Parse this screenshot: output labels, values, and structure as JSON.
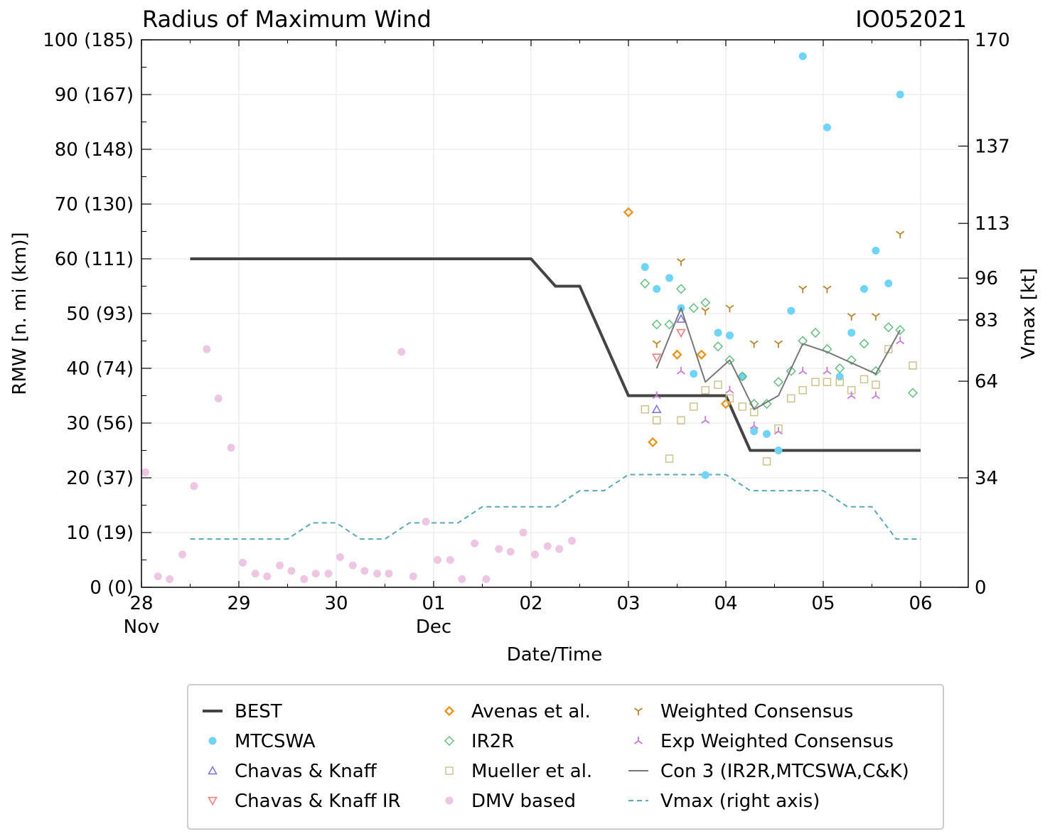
{
  "chart_data": {
    "type": "line+scatter",
    "title": "Radius of Maximum Wind",
    "storm_id": "IO052021",
    "xlabel": "Date/Time",
    "ylabel": "RMW [n. mi (km)]",
    "y2label": "Vmax [kt]",
    "x_domain_days": [
      0,
      8.5
    ],
    "ylim": [
      0,
      100
    ],
    "y2lim": [
      0,
      170
    ],
    "grid": true,
    "legend_position": "bottom",
    "x_ticks": [
      {
        "x": 0,
        "label": "28",
        "sub": "Nov"
      },
      {
        "x": 1,
        "label": "29",
        "sub": ""
      },
      {
        "x": 2,
        "label": "30",
        "sub": ""
      },
      {
        "x": 3,
        "label": "01",
        "sub": "Dec"
      },
      {
        "x": 4,
        "label": "02",
        "sub": ""
      },
      {
        "x": 5,
        "label": "03",
        "sub": ""
      },
      {
        "x": 6,
        "label": "04",
        "sub": ""
      },
      {
        "x": 7,
        "label": "05",
        "sub": ""
      },
      {
        "x": 8,
        "label": "06",
        "sub": ""
      }
    ],
    "y_ticks": [
      {
        "v": 0,
        "label": "0 (0)"
      },
      {
        "v": 10,
        "label": "10 (19)"
      },
      {
        "v": 20,
        "label": "20 (37)"
      },
      {
        "v": 30,
        "label": "30 (56)"
      },
      {
        "v": 40,
        "label": "40 (74)"
      },
      {
        "v": 50,
        "label": "50 (93)"
      },
      {
        "v": 60,
        "label": "60 (111)"
      },
      {
        "v": 70,
        "label": "70 (130)"
      },
      {
        "v": 80,
        "label": "80 (148)"
      },
      {
        "v": 90,
        "label": "90 (167)"
      },
      {
        "v": 100,
        "label": "100 (185)"
      }
    ],
    "y2_ticks": [
      {
        "v": 0,
        "label": "0"
      },
      {
        "v": 34,
        "label": "34"
      },
      {
        "v": 64,
        "label": "64"
      },
      {
        "v": 83,
        "label": "83"
      },
      {
        "v": 96,
        "label": "96"
      },
      {
        "v": 113,
        "label": "113"
      },
      {
        "v": 137,
        "label": "137"
      },
      {
        "v": 170,
        "label": "170"
      }
    ],
    "series": [
      {
        "name": "BEST",
        "kind": "line",
        "color": "#444444",
        "x": [
          0.5,
          4.0,
          4.25,
          4.5,
          5.0,
          6.0,
          6.25,
          8.0
        ],
        "y": [
          60,
          60,
          55,
          55,
          35,
          35,
          25,
          25
        ]
      },
      {
        "name": "MTCSWA",
        "kind": "scatter",
        "marker": "circle",
        "color": "#6fd4f8",
        "x": [
          5.17,
          5.29,
          5.42,
          5.54,
          5.67,
          5.79,
          5.92,
          6.04,
          6.17,
          6.29,
          6.42,
          6.54,
          6.67,
          6.79,
          7.04,
          7.17,
          7.29,
          7.42,
          7.54,
          7.67,
          7.79
        ],
        "y": [
          58.5,
          54.5,
          56.5,
          51,
          39,
          20.5,
          46.5,
          46,
          38.5,
          28.5,
          28,
          25,
          50.5,
          97,
          84,
          38.5,
          46.5,
          54.5,
          61.5,
          55.5,
          90
        ]
      },
      {
        "name": "Chavas & Knaff",
        "kind": "scatter",
        "marker": "triangle-up",
        "color": "#8474d8",
        "x": [
          5.29,
          5.54
        ],
        "y": [
          32.5,
          49
        ]
      },
      {
        "name": "Chavas & Knaff IR",
        "kind": "scatter",
        "marker": "triangle-down",
        "color": "#ec7f7f",
        "x": [
          5.29,
          5.54
        ],
        "y": [
          42,
          46.5
        ]
      },
      {
        "name": "Avenas et al.",
        "kind": "scatter",
        "marker": "diamond",
        "color": "#e79622",
        "x": [
          5.0,
          5.25,
          5.5,
          5.75,
          6.0
        ],
        "y": [
          68.5,
          26.5,
          42.5,
          42.5,
          33.5
        ]
      },
      {
        "name": "IR2R",
        "kind": "scatter",
        "marker": "diamond-open",
        "color": "#5cbc7a",
        "x": [
          5.17,
          5.29,
          5.42,
          5.54,
          5.67,
          5.79,
          5.92,
          6.04,
          6.17,
          6.29,
          6.42,
          6.54,
          6.67,
          6.79,
          6.92,
          7.04,
          7.17,
          7.29,
          7.42,
          7.54,
          7.67,
          7.79,
          7.92
        ],
        "y": [
          55.5,
          48,
          48,
          54.5,
          51,
          52,
          44,
          41.5,
          38.5,
          33.5,
          33.5,
          37.5,
          39.5,
          45,
          46.5,
          43.5,
          40,
          41.5,
          44.5,
          39.5,
          47.5,
          47,
          35.5
        ]
      },
      {
        "name": "Mueller et al.",
        "kind": "scatter",
        "marker": "square",
        "color": "#cabf85",
        "x": [
          5.17,
          5.29,
          5.42,
          5.54,
          5.67,
          5.79,
          5.92,
          6.04,
          6.17,
          6.29,
          6.42,
          6.54,
          6.67,
          6.79,
          6.92,
          7.04,
          7.17,
          7.29,
          7.42,
          7.54,
          7.67,
          7.92
        ],
        "y": [
          32.5,
          30.5,
          23.5,
          30.5,
          33,
          36,
          37,
          34.5,
          33,
          32,
          23,
          29,
          34.5,
          36,
          37.5,
          37.5,
          37.5,
          36,
          38,
          37,
          43.5,
          40.5
        ]
      },
      {
        "name": "DMV based",
        "kind": "scatter",
        "marker": "circle",
        "color": "#ecc6e2",
        "x": [
          0.04,
          0.17,
          0.29,
          0.42,
          0.54,
          0.67,
          0.79,
          0.92,
          1.04,
          1.17,
          1.29,
          1.42,
          1.54,
          1.67,
          1.79,
          1.92,
          2.04,
          2.17,
          2.29,
          2.42,
          2.54,
          2.67,
          2.79,
          2.92,
          3.04,
          3.17,
          3.29,
          3.42,
          3.54,
          3.67,
          3.79,
          3.92,
          4.04,
          4.17,
          4.29,
          4.42
        ],
        "y": [
          21,
          2,
          1.5,
          6,
          18.5,
          43.5,
          34.5,
          25.5,
          4.5,
          2.5,
          2,
          4,
          3,
          1.5,
          2.5,
          2.5,
          5.5,
          4,
          3,
          2.5,
          2.5,
          43,
          2,
          12,
          5,
          5,
          1.5,
          8,
          1.5,
          7,
          6.5,
          10,
          6,
          7.5,
          7,
          8.5
        ]
      },
      {
        "name": "Weighted Consensus",
        "kind": "scatter",
        "marker": "tri-down",
        "color": "#b8862e",
        "x": [
          5.29,
          5.54,
          5.79,
          6.04,
          6.29,
          6.54,
          6.79,
          7.04,
          7.29,
          7.54,
          7.79
        ],
        "y": [
          44.5,
          59.5,
          50.5,
          51,
          44.5,
          44.5,
          54.5,
          54.5,
          49.5,
          49.5,
          64.5
        ]
      },
      {
        "name": "Exp Weighted Consensus",
        "kind": "scatter",
        "marker": "tri-up",
        "color": "#c97ad6",
        "x": [
          5.29,
          5.54,
          5.79,
          6.04,
          6.29,
          6.54,
          6.79,
          7.04,
          7.29,
          7.54,
          7.79
        ],
        "y": [
          35,
          39.5,
          30.5,
          36,
          29.5,
          28.5,
          39.5,
          39.5,
          35,
          35,
          45
        ]
      },
      {
        "name": "Con 3 (IR2R,MTCSWA,C&K)",
        "kind": "line",
        "color": "#777777",
        "x": [
          5.29,
          5.54,
          5.79,
          6.04,
          6.29,
          6.54,
          6.79,
          7.04,
          7.29,
          7.54,
          7.79
        ],
        "y": [
          40,
          51,
          37.5,
          41.5,
          32.5,
          35,
          44.5,
          43,
          41,
          39,
          47
        ]
      },
      {
        "name": "Vmax (right axis)",
        "kind": "line",
        "dashed": true,
        "axis": "right",
        "color": "#5aa8b5",
        "x": [
          0.5,
          1.5,
          1.75,
          2.0,
          2.25,
          2.5,
          2.75,
          3.25,
          3.5,
          3.75,
          4.25,
          4.5,
          4.75,
          5.0,
          6.0,
          6.25,
          7.0,
          7.25,
          7.5,
          7.75,
          8.0
        ],
        "y": [
          15,
          15,
          20,
          20,
          15,
          15,
          20,
          20,
          25,
          25,
          25,
          30,
          30,
          35,
          35,
          30,
          30,
          25,
          25,
          15,
          15
        ]
      }
    ]
  }
}
